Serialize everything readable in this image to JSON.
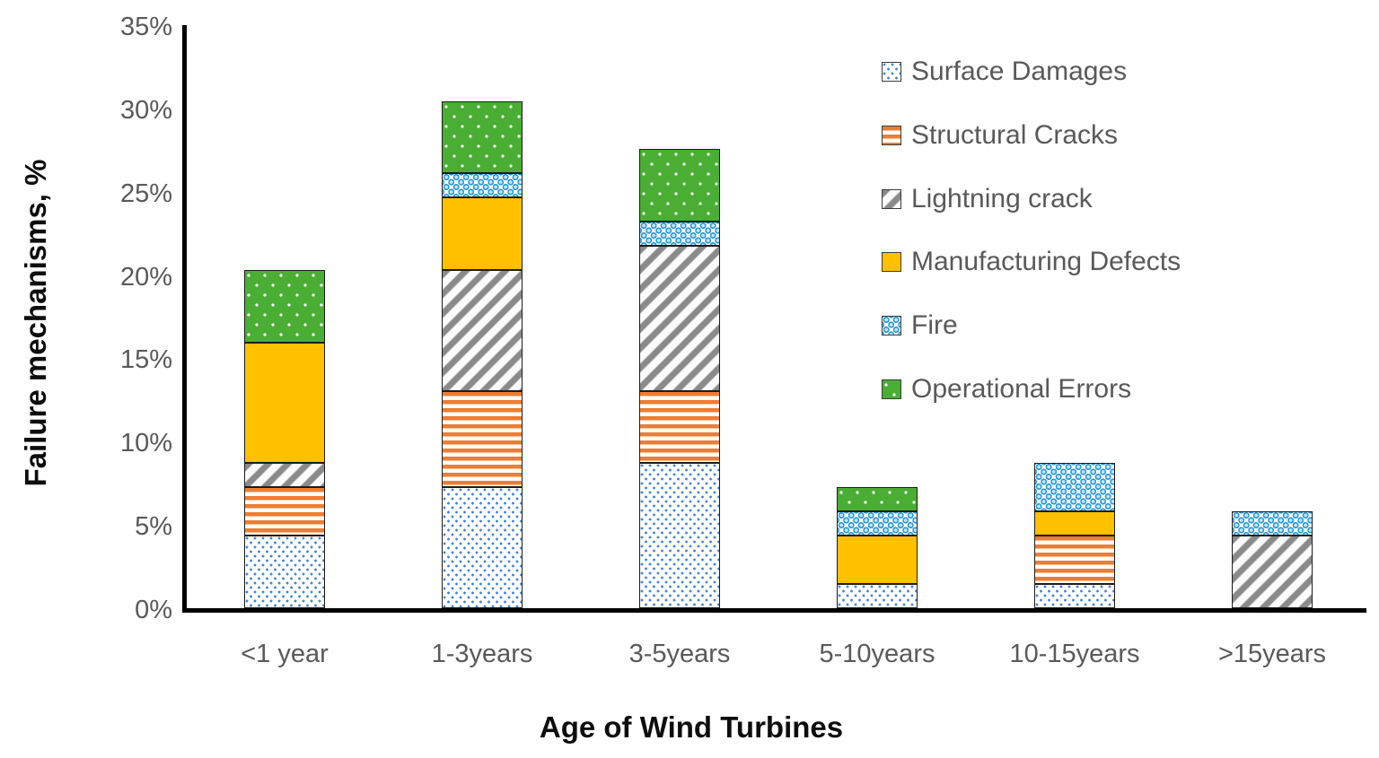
{
  "chart_data": {
    "type": "bar",
    "stacked": true,
    "xlabel": "Age of Wind Turbines",
    "ylabel": "Failure mechanisms, %",
    "ylim": [
      0,
      35
    ],
    "grid": false,
    "legend_position": "top-right",
    "yticks": [
      {
        "value": 0,
        "label": "0%"
      },
      {
        "value": 5,
        "label": "5%"
      },
      {
        "value": 10,
        "label": "10%"
      },
      {
        "value": 15,
        "label": "15%"
      },
      {
        "value": 20,
        "label": "20%"
      },
      {
        "value": 25,
        "label": "25%"
      },
      {
        "value": 30,
        "label": "30%"
      },
      {
        "value": 35,
        "label": "35%"
      }
    ],
    "categories": [
      "<1 year",
      "1-3years",
      "3-5years",
      "5-10years",
      "10-15years",
      ">15years"
    ],
    "series": [
      {
        "name": "Surface Damages",
        "pattern": "surface",
        "color": "#4a86cf",
        "values": [
          4.35,
          7.25,
          8.7,
          1.45,
          1.45,
          0
        ]
      },
      {
        "name": "Structural Cracks",
        "pattern": "structural",
        "color": "#ed7d31",
        "values": [
          2.9,
          5.8,
          4.35,
          0,
          2.9,
          0
        ]
      },
      {
        "name": "Lightning crack",
        "pattern": "lightning",
        "color": "#8a8a8a",
        "values": [
          1.45,
          7.25,
          8.7,
          0,
          0,
          4.35
        ]
      },
      {
        "name": "Manufacturing Defects",
        "pattern": "manufacturing",
        "color": "#ffc000",
        "values": [
          7.25,
          4.35,
          0,
          2.9,
          1.45,
          0
        ]
      },
      {
        "name": "Fire",
        "pattern": "fire",
        "color": "#2696d6",
        "values": [
          0,
          1.45,
          1.45,
          1.45,
          2.9,
          1.45
        ]
      },
      {
        "name": "Operational Errors",
        "pattern": "operational",
        "color": "#4aae35",
        "values": [
          4.35,
          4.35,
          4.35,
          1.45,
          0,
          0
        ]
      }
    ],
    "bar_totals": [
      20.3,
      30.45,
      27.55,
      7.25,
      8.7,
      5.8
    ],
    "axis_color": "#000000",
    "tick_text_color": "#595959"
  }
}
